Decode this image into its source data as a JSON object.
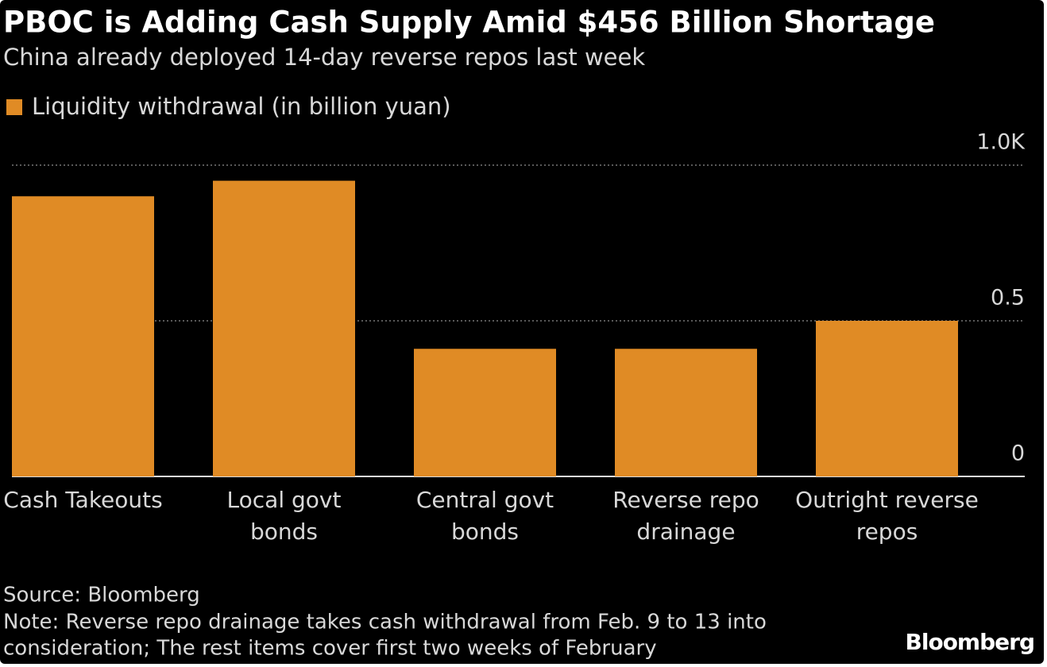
{
  "chart_data": {
    "type": "bar",
    "title": "PBOC is Adding Cash Supply Amid $456 Billion Shortage",
    "subtitle": "China already deployed 14-day reverse repos last week",
    "legend": "Liquidity withdrawal (in billion yuan)",
    "categories": [
      [
        "Cash Takeouts"
      ],
      [
        "Local govt",
        "bonds"
      ],
      [
        "Central govt",
        "bonds"
      ],
      [
        "Reverse repo",
        "drainage"
      ],
      [
        "Outright reverse",
        "repos"
      ]
    ],
    "values": [
      0.9,
      0.95,
      0.41,
      0.41,
      0.5
    ],
    "color": "#e08b25",
    "ylim": [
      0,
      1
    ],
    "yticks": [
      0,
      0.5,
      {
        "value": 1,
        "label": "1.0K"
      }
    ],
    "grid": true,
    "source": "Source: Bloomberg",
    "note": [
      "Note: Reverse repo drainage takes cash withdrawal from Feb. 9 to 13 into",
      "consideration; The rest items cover first two weeks of February"
    ],
    "brand": "Bloomberg"
  }
}
